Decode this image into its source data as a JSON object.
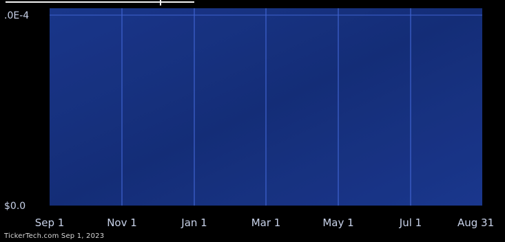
{
  "chart_data": {
    "type": "line",
    "x": [
      "Sep 1",
      "Nov 1",
      "Jan 1",
      "Mar 1",
      "May 1",
      "Jul 1",
      "Aug 31"
    ],
    "y_tick_labels": [
      ".0E-4",
      "$0.0"
    ],
    "series": [],
    "grid": true
  },
  "footer": {
    "source": "TickerTech.com",
    "date": "Sep 1, 2023"
  },
  "colors": {
    "background": "#000000",
    "plot_fill": "#1a3587",
    "grid": "#3f63d0",
    "text": "#c9d3ea"
  }
}
